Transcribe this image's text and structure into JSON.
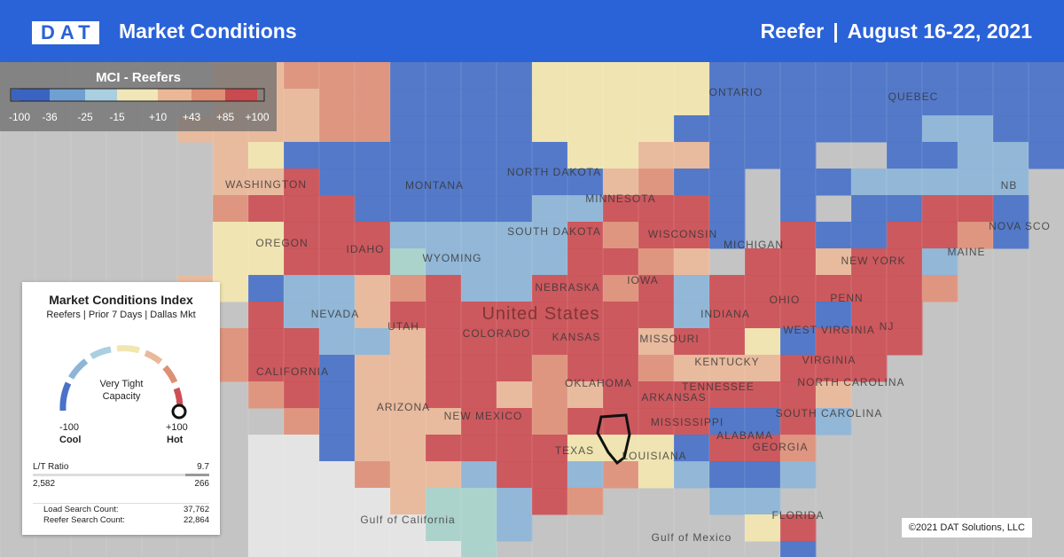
{
  "header": {
    "logo": "DAT",
    "title": "Market Conditions",
    "equipment": "Reefer",
    "separator": "|",
    "dates": "August 16-22, 2021"
  },
  "legend": {
    "title": "MCI - Reefers",
    "ticks": [
      "-100",
      "-36",
      "-25",
      "-15",
      "+10",
      "+43",
      "+85",
      "+100"
    ]
  },
  "card": {
    "title": "Market Conditions Index",
    "subtitle": "Reefers | Prior 7 Days | Dallas Mkt",
    "status": "Very Tight Capacity",
    "min": "-100",
    "min_label": "Cool",
    "max": "+100",
    "max_label": "Hot",
    "ratio": {
      "label": "L/T Ratio",
      "value": "9.7",
      "loads": "2,582",
      "trucks": "266"
    },
    "counts": [
      {
        "label": "Load Search Count:",
        "value": "37,762"
      },
      {
        "label": "Reefer Search Count:",
        "value": "22,864"
      }
    ]
  },
  "map": {
    "labels": [
      "ONTARIO",
      "QUEBEC",
      "NORTH DAKOTA",
      "MONTANA",
      "WASHINGTON",
      "MINNESOTA",
      "SOUTH DAKOTA",
      "WYOMING",
      "IDAHO",
      "OREGON",
      "MAINE",
      "WISCONSIN",
      "MICHIGAN",
      "NEW YORK",
      "NEVADA",
      "NEBRASKA",
      "IOWA",
      "United States",
      "UTAH",
      "COLORADO",
      "KANSAS",
      "MISSOURI",
      "INDIANA",
      "OHIO",
      "PENN",
      "WEST VIRGINIA",
      "VIRGINIA",
      "NJ",
      "CALIFORNIA",
      "OKLAHOMA",
      "ARIZONA",
      "NEW MEXICO",
      "TENNESSEE",
      "KENTUCKY",
      "ARKANSAS",
      "NORTH CAROLINA",
      "SOUTH CAROLINA",
      "MISSISSIPPI",
      "ALABAMA",
      "GEORGIA",
      "TEXAS",
      "LOUISIANA",
      "FLORIDA",
      "Gulf of California",
      "Gulf of Mexico",
      "NB",
      "NOVA SCO"
    ]
  },
  "footer": {
    "copyright": "©2021 DAT Solutions, LLC"
  }
}
